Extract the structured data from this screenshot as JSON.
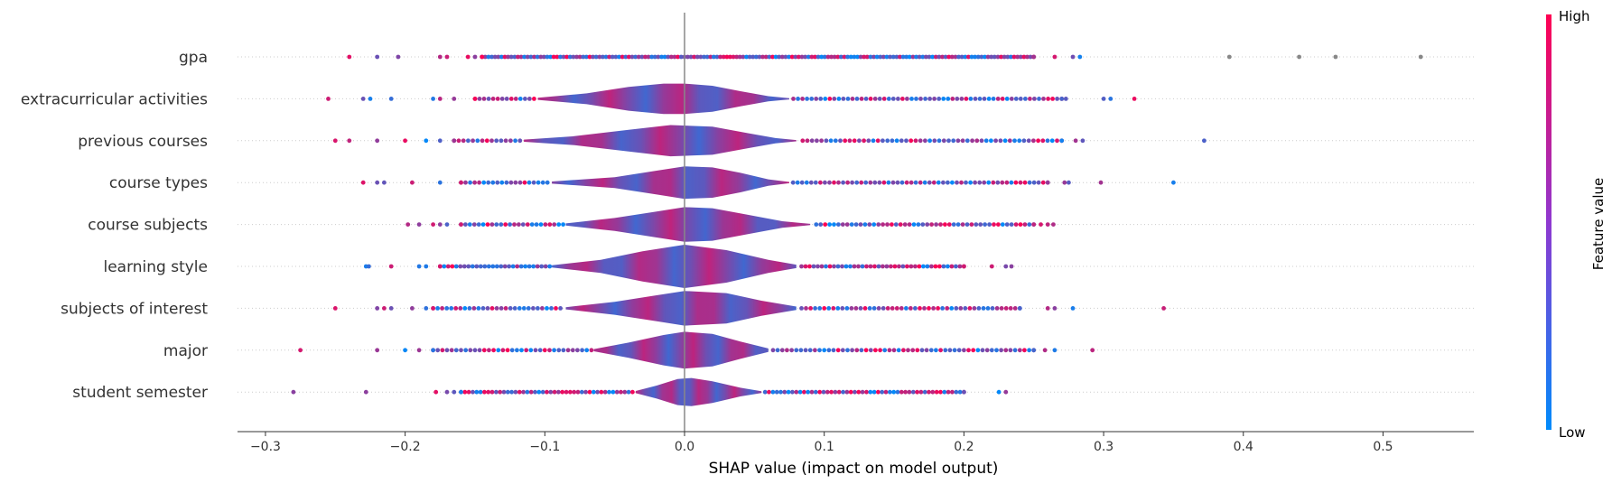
{
  "chart_data": {
    "type": "scatter",
    "subtype": "shap-violin-summary",
    "title": "",
    "xlabel": "SHAP value (impact on model output)",
    "ylabel": "",
    "xlim": [
      -0.32,
      0.565
    ],
    "xticks": [
      -0.3,
      -0.2,
      -0.1,
      0.0,
      0.1,
      0.2,
      0.3,
      0.4,
      0.5
    ],
    "xtick_labels": [
      "−0.3",
      "−0.2",
      "−0.1",
      "0.0",
      "0.1",
      "0.2",
      "0.3",
      "0.4",
      "0.5"
    ],
    "zero_line": true,
    "colorbar": {
      "title": "Feature value",
      "high_label": "High",
      "low_label": "Low",
      "low_color": "#008bfb",
      "high_color": "#ff0052"
    },
    "features": [
      {
        "name": "gpa",
        "violin": false,
        "density": [],
        "outliers": [
          -0.24,
          -0.22,
          -0.205,
          -0.175,
          -0.17,
          -0.155,
          -0.15,
          -0.145,
          0.25,
          0.265,
          0.278,
          0.283,
          0.39,
          0.44,
          0.466,
          0.527
        ]
      },
      {
        "name": "extracurricular activities",
        "violin": true,
        "density": [
          [
            -0.105,
            0.05
          ],
          [
            -0.07,
            0.25
          ],
          [
            -0.04,
            0.55
          ],
          [
            -0.015,
            0.7
          ],
          [
            0.0,
            0.7
          ],
          [
            0.02,
            0.6
          ],
          [
            0.04,
            0.35
          ],
          [
            0.06,
            0.12
          ],
          [
            0.075,
            0.03
          ]
        ],
        "outliers": [
          -0.255,
          -0.23,
          -0.225,
          -0.21,
          -0.18,
          -0.175,
          -0.165,
          -0.15,
          0.27,
          0.273,
          0.3,
          0.305,
          0.322
        ]
      },
      {
        "name": "previous courses",
        "violin": true,
        "density": [
          [
            -0.115,
            0.05
          ],
          [
            -0.08,
            0.2
          ],
          [
            -0.04,
            0.5
          ],
          [
            -0.01,
            0.72
          ],
          [
            0.02,
            0.65
          ],
          [
            0.045,
            0.35
          ],
          [
            0.065,
            0.12
          ],
          [
            0.08,
            0.03
          ]
        ],
        "outliers": [
          -0.25,
          -0.24,
          -0.22,
          -0.2,
          -0.185,
          -0.175,
          -0.165,
          0.27,
          0.28,
          0.285,
          0.372
        ]
      },
      {
        "name": "course types",
        "violin": true,
        "density": [
          [
            -0.095,
            0.05
          ],
          [
            -0.05,
            0.25
          ],
          [
            -0.02,
            0.55
          ],
          [
            0.0,
            0.75
          ],
          [
            0.02,
            0.7
          ],
          [
            0.04,
            0.45
          ],
          [
            0.06,
            0.15
          ],
          [
            0.075,
            0.03
          ]
        ],
        "outliers": [
          -0.23,
          -0.22,
          -0.215,
          -0.195,
          -0.175,
          -0.16,
          0.26,
          0.272,
          0.275,
          0.298,
          0.35
        ]
      },
      {
        "name": "course subjects",
        "violin": true,
        "density": [
          [
            -0.085,
            0.05
          ],
          [
            -0.05,
            0.3
          ],
          [
            -0.02,
            0.6
          ],
          [
            0.0,
            0.8
          ],
          [
            0.02,
            0.75
          ],
          [
            0.045,
            0.45
          ],
          [
            0.07,
            0.15
          ],
          [
            0.09,
            0.03
          ]
        ],
        "outliers": [
          -0.198,
          -0.19,
          -0.18,
          -0.175,
          -0.17,
          -0.16,
          0.25,
          0.255,
          0.26,
          0.264
        ]
      },
      {
        "name": "learning style",
        "violin": true,
        "density": [
          [
            -0.095,
            0.05
          ],
          [
            -0.06,
            0.3
          ],
          [
            -0.03,
            0.7
          ],
          [
            0.0,
            1.0
          ],
          [
            0.03,
            0.75
          ],
          [
            0.06,
            0.3
          ],
          [
            0.08,
            0.08
          ]
        ],
        "outliers": [
          -0.228,
          -0.226,
          -0.21,
          -0.19,
          -0.185,
          -0.175,
          0.2,
          0.22,
          0.23,
          0.234
        ]
      },
      {
        "name": "subjects of interest",
        "violin": true,
        "density": [
          [
            -0.085,
            0.05
          ],
          [
            -0.05,
            0.3
          ],
          [
            -0.02,
            0.6
          ],
          [
            0.0,
            0.8
          ],
          [
            0.03,
            0.7
          ],
          [
            0.055,
            0.35
          ],
          [
            0.08,
            0.08
          ]
        ],
        "outliers": [
          -0.25,
          -0.22,
          -0.215,
          -0.21,
          -0.195,
          -0.185,
          -0.18,
          0.24,
          0.26,
          0.265,
          0.278,
          0.343
        ]
      },
      {
        "name": "major",
        "violin": true,
        "density": [
          [
            -0.065,
            0.05
          ],
          [
            -0.04,
            0.35
          ],
          [
            -0.015,
            0.7
          ],
          [
            0.0,
            0.85
          ],
          [
            0.02,
            0.75
          ],
          [
            0.04,
            0.4
          ],
          [
            0.06,
            0.08
          ]
        ],
        "outliers": [
          -0.275,
          -0.22,
          -0.2,
          -0.19,
          -0.18,
          0.25,
          0.258,
          0.265,
          0.292
        ]
      },
      {
        "name": "student semester",
        "violin": true,
        "density": [
          [
            -0.035,
            0.05
          ],
          [
            -0.02,
            0.3
          ],
          [
            -0.005,
            0.6
          ],
          [
            0.005,
            0.65
          ],
          [
            0.02,
            0.5
          ],
          [
            0.04,
            0.2
          ],
          [
            0.055,
            0.04
          ]
        ],
        "outliers": [
          -0.28,
          -0.228,
          -0.178,
          -0.17,
          -0.165,
          -0.16,
          0.2,
          0.225,
          0.23
        ]
      }
    ]
  }
}
